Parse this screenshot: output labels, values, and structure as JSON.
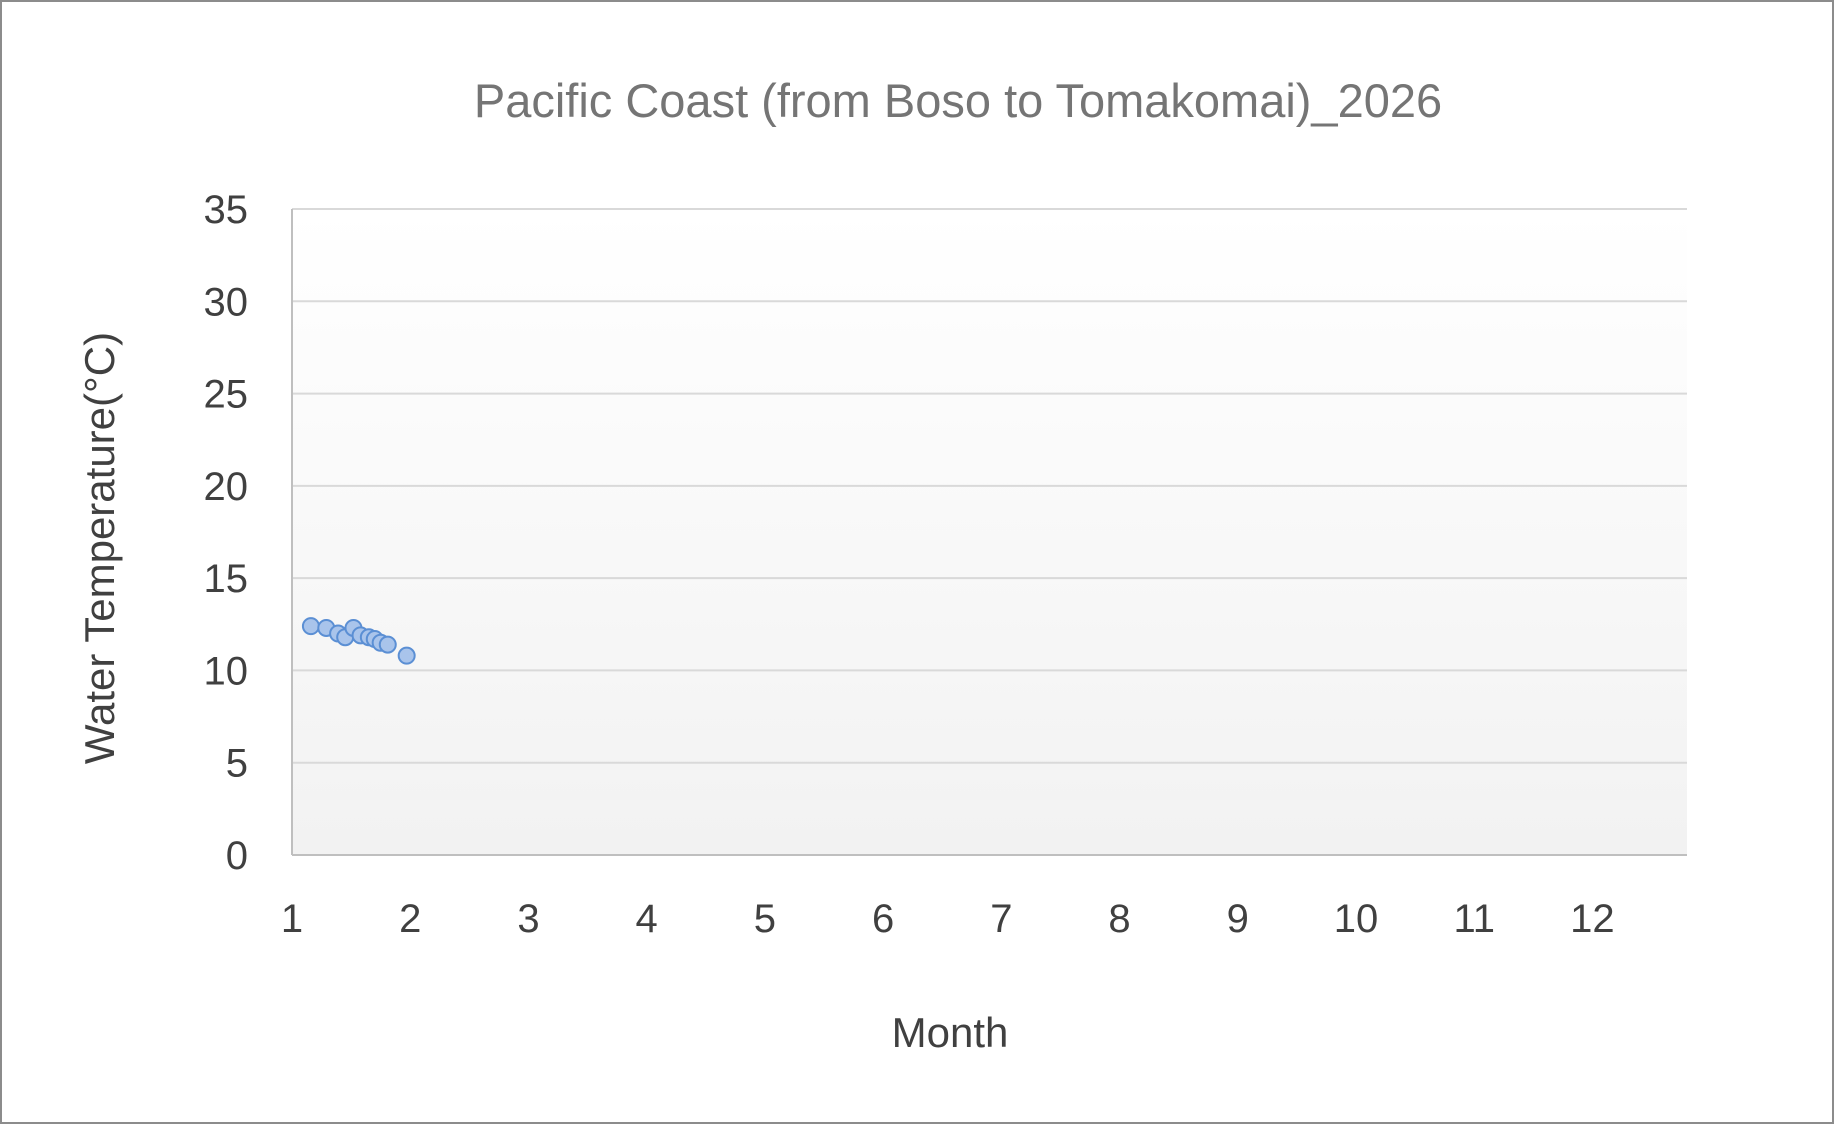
{
  "chart_data": {
    "type": "scatter",
    "title": "Pacific Coast (from Boso to Tomakomai)_2026",
    "xlabel": "Month",
    "ylabel": "Water Temperature(°C)",
    "xlim": [
      1,
      12.8
    ],
    "ylim": [
      0,
      35
    ],
    "x_ticks": [
      "1",
      "2",
      "3",
      "4",
      "5",
      "6",
      "7",
      "8",
      "9",
      "10",
      "11",
      "12"
    ],
    "y_ticks": [
      "0",
      "5",
      "10",
      "15",
      "20",
      "25",
      "30",
      "35"
    ],
    "grid": true,
    "legend": "none",
    "series": [
      {
        "points": [
          {
            "x": 1.16,
            "y": 12.4
          },
          {
            "x": 1.29,
            "y": 12.3
          },
          {
            "x": 1.39,
            "y": 12.0
          },
          {
            "x": 1.45,
            "y": 11.8
          },
          {
            "x": 1.52,
            "y": 12.3
          },
          {
            "x": 1.58,
            "y": 11.9
          },
          {
            "x": 1.65,
            "y": 11.8
          },
          {
            "x": 1.7,
            "y": 11.7
          },
          {
            "x": 1.75,
            "y": 11.5
          },
          {
            "x": 1.81,
            "y": 11.4
          },
          {
            "x": 1.97,
            "y": 10.8
          }
        ]
      }
    ],
    "colors": {
      "marker_fill": "#a9c4eb",
      "marker_stroke": "#5b8fd4",
      "gridline": "#d9d9d9",
      "plot_bg_top": "#ffffff",
      "plot_bg_bottom": "#f2f2f2"
    }
  }
}
